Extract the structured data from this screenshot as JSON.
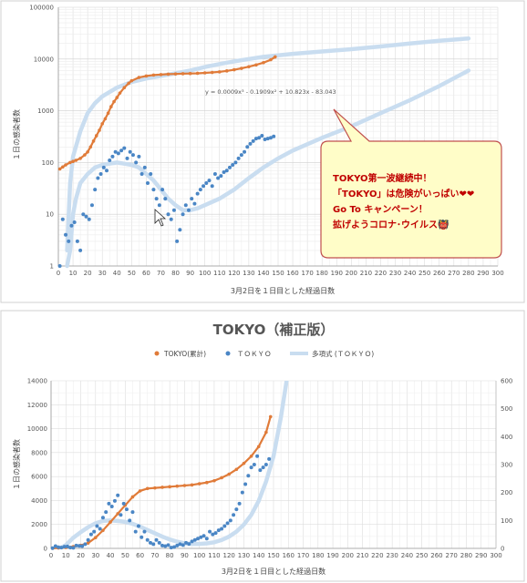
{
  "chart_data": [
    {
      "type": "scatter",
      "title": "",
      "xlabel": "3月2日を１日目とした経過日数",
      "ylabel": "１日の感染者数",
      "yscale": "log",
      "xlim": [
        0,
        300
      ],
      "ylim": [
        1,
        100000
      ],
      "x_ticks": [
        "0",
        "10",
        "20",
        "30",
        "40",
        "50",
        "60",
        "70",
        "80",
        "90",
        "100",
        "110",
        "120",
        "130",
        "140",
        "150",
        "160",
        "170",
        "180",
        "190",
        "200",
        "210",
        "220",
        "230",
        "240",
        "250",
        "260",
        "270",
        "280",
        "290",
        "300"
      ],
      "y_ticks": [
        "1",
        "10",
        "100",
        "1000",
        "10000",
        "100000"
      ],
      "grid": true,
      "colors": {
        "cumulative": "#E07B39",
        "daily": "#4A86C5",
        "trend": "#C9DDF0"
      },
      "equation": "y = 0.0009x³ - 0.1909x² + 10.823x - 83.043",
      "callout_lines": [
        "TOKYO第一波継続中！",
        "「TOKYO」は危険がいっぱい❤❤",
        "Go To キャンペーン！",
        "拡げようコロナ･ウイルス👹"
      ],
      "series": [
        {
          "role": "cumulative",
          "x": [
            1,
            3,
            5,
            8,
            10,
            12,
            15,
            18,
            20,
            22,
            24,
            26,
            28,
            30,
            32,
            34,
            36,
            38,
            40,
            42,
            45,
            48,
            50,
            55,
            60,
            65,
            70,
            75,
            80,
            85,
            90,
            95,
            100,
            105,
            110,
            115,
            120,
            125,
            130,
            135,
            140,
            145,
            148
          ],
          "y": [
            75,
            82,
            90,
            100,
            105,
            110,
            120,
            140,
            160,
            200,
            260,
            330,
            420,
            560,
            700,
            900,
            1200,
            1500,
            1800,
            2200,
            2800,
            3400,
            3800,
            4400,
            4700,
            4900,
            5000,
            5100,
            5150,
            5200,
            5250,
            5300,
            5400,
            5500,
            5650,
            5900,
            6200,
            6600,
            7100,
            7700,
            8500,
            9700,
            11000
          ]
        },
        {
          "role": "daily",
          "x": [
            1,
            3,
            5,
            7,
            9,
            11,
            13,
            15,
            17,
            19,
            21,
            23,
            25,
            27,
            29,
            31,
            33,
            35,
            37,
            39,
            41,
            43,
            45,
            47,
            49,
            51,
            53,
            55,
            57,
            59,
            61,
            63,
            65,
            67,
            69,
            71,
            73,
            75,
            77,
            79,
            81,
            83,
            85,
            87,
            89,
            91,
            93,
            95,
            97,
            99,
            101,
            103,
            105,
            107,
            109,
            111,
            113,
            115,
            117,
            119,
            121,
            123,
            125,
            127,
            129,
            131,
            133,
            135,
            137,
            139,
            141,
            143,
            145,
            147
          ],
          "y": [
            1,
            8,
            4,
            3,
            6,
            7,
            3,
            2,
            10,
            9,
            8,
            15,
            30,
            50,
            60,
            80,
            70,
            110,
            130,
            160,
            150,
            170,
            190,
            120,
            160,
            140,
            100,
            130,
            60,
            80,
            40,
            60,
            30,
            20,
            15,
            30,
            20,
            10,
            8,
            12,
            3,
            5,
            10,
            15,
            12,
            20,
            16,
            25,
            30,
            35,
            40,
            45,
            35,
            60,
            50,
            55,
            65,
            70,
            80,
            90,
            100,
            120,
            140,
            160,
            200,
            230,
            260,
            290,
            300,
            330,
            280,
            290,
            300,
            320
          ]
        },
        {
          "role": "trend",
          "x": [
            6,
            8,
            10,
            15,
            20,
            25,
            30,
            40,
            50,
            60,
            70,
            80,
            90,
            100,
            110,
            120,
            130,
            140,
            150,
            160,
            180,
            200,
            220,
            240,
            260,
            280
          ],
          "y": [
            2,
            40,
            130,
            400,
            900,
            1400,
            1900,
            2800,
            3600,
            4200,
            4700,
            5300,
            6000,
            7000,
            8000,
            9000,
            10000,
            11000,
            11800,
            12600,
            14000,
            15500,
            17500,
            20000,
            22500,
            25000
          ]
        },
        {
          "role": "trend",
          "x": [
            6,
            8,
            10,
            12,
            15,
            20,
            25,
            30,
            35,
            40,
            45,
            50,
            55,
            60,
            65,
            70,
            75,
            80,
            85,
            90,
            95,
            100,
            110,
            120,
            130,
            140,
            150,
            160,
            180,
            200,
            220,
            240,
            260,
            280
          ],
          "y": [
            1,
            2,
            10,
            20,
            40,
            60,
            80,
            90,
            95,
            100,
            95,
            90,
            80,
            60,
            45,
            30,
            20,
            15,
            12,
            12,
            13,
            15,
            20,
            30,
            50,
            80,
            120,
            170,
            300,
            500,
            900,
            1600,
            3000,
            6000
          ]
        }
      ]
    },
    {
      "type": "scatter",
      "title": "TOKYO（補正版）",
      "xlabel": "3月2日を１日目とした経過日数",
      "ylabel": "１日の感染者数",
      "xlim": [
        0,
        300
      ],
      "ylim": [
        0,
        14000
      ],
      "y2lim": [
        0,
        600
      ],
      "x_ticks": [
        "0",
        "10",
        "20",
        "30",
        "40",
        "50",
        "60",
        "70",
        "80",
        "90",
        "100",
        "110",
        "120",
        "130",
        "140",
        "150",
        "160",
        "170",
        "180",
        "190",
        "200",
        "210",
        "220",
        "230",
        "240",
        "250",
        "260",
        "270",
        "280",
        "290",
        "300"
      ],
      "y_ticks": [
        "0",
        "2000",
        "4000",
        "6000",
        "8000",
        "10000",
        "12000",
        "14000"
      ],
      "y2_ticks": [
        "0",
        "100",
        "200",
        "300",
        "400",
        "500",
        "600"
      ],
      "legend": [
        "TOKYO(累計)",
        "ＴＯＫＹＯ",
        "多項式 (ＴＯＫＹＯ)"
      ],
      "legend_position": "top",
      "grid": true,
      "series": [
        {
          "name": "TOKYO(累計)",
          "axis": "left",
          "x": [
            1,
            5,
            10,
            15,
            20,
            25,
            30,
            35,
            40,
            45,
            50,
            55,
            60,
            65,
            70,
            75,
            80,
            85,
            90,
            95,
            100,
            105,
            110,
            115,
            120,
            125,
            130,
            135,
            140,
            145,
            148
          ],
          "y": [
            10,
            30,
            80,
            150,
            250,
            450,
            900,
            1500,
            2200,
            2900,
            3600,
            4300,
            4800,
            5000,
            5050,
            5100,
            5150,
            5200,
            5250,
            5300,
            5400,
            5500,
            5650,
            5900,
            6200,
            6600,
            7100,
            7700,
            8500,
            9700,
            11000
          ]
        },
        {
          "name": "ＴＯＫＹＯ",
          "axis": "right",
          "x": [
            1,
            3,
            5,
            7,
            9,
            11,
            13,
            15,
            17,
            19,
            21,
            23,
            25,
            27,
            29,
            31,
            33,
            35,
            37,
            39,
            41,
            43,
            45,
            47,
            49,
            51,
            53,
            55,
            57,
            59,
            61,
            63,
            65,
            67,
            69,
            71,
            73,
            75,
            77,
            79,
            81,
            83,
            85,
            87,
            89,
            91,
            93,
            95,
            97,
            99,
            101,
            103,
            105,
            107,
            109,
            111,
            113,
            115,
            117,
            119,
            121,
            123,
            125,
            127,
            129,
            131,
            133,
            135,
            137,
            139,
            141,
            143,
            145,
            147
          ],
          "y": [
            1,
            8,
            4,
            3,
            6,
            7,
            3,
            2,
            10,
            9,
            8,
            15,
            30,
            50,
            60,
            80,
            70,
            110,
            130,
            160,
            150,
            170,
            190,
            120,
            160,
            140,
            100,
            130,
            60,
            80,
            40,
            60,
            30,
            20,
            15,
            30,
            20,
            10,
            8,
            12,
            3,
            5,
            10,
            15,
            12,
            20,
            16,
            25,
            30,
            35,
            40,
            45,
            35,
            60,
            50,
            55,
            65,
            70,
            80,
            90,
            100,
            120,
            140,
            160,
            200,
            230,
            260,
            290,
            300,
            330,
            280,
            290,
            300,
            320
          ]
        },
        {
          "name": "多項式 (ＴＯＫＹＯ)",
          "axis": "right",
          "x": [
            6,
            10,
            15,
            20,
            25,
            30,
            35,
            40,
            45,
            50,
            55,
            60,
            65,
            70,
            75,
            80,
            85,
            90,
            95,
            100,
            105,
            110,
            115,
            120,
            125,
            130,
            135,
            140,
            145,
            150,
            155,
            160
          ],
          "y": [
            0,
            12,
            38,
            58,
            76,
            90,
            98,
            100,
            98,
            95,
            88,
            78,
            66,
            54,
            42,
            32,
            24,
            18,
            16,
            16,
            18,
            22,
            30,
            42,
            60,
            85,
            120,
            170,
            240,
            330,
            470,
            640
          ]
        }
      ]
    }
  ]
}
